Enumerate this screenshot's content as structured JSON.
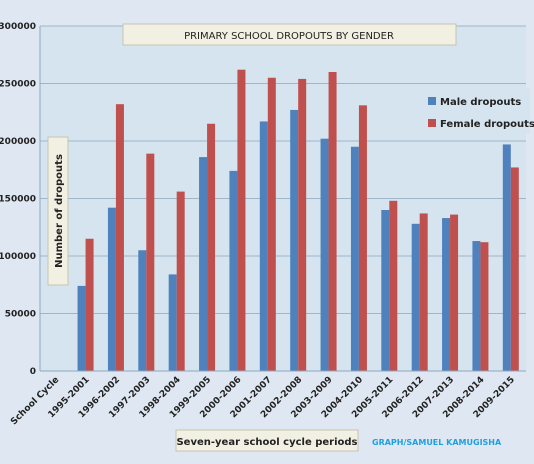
{
  "chart_data": {
    "type": "bar",
    "title": "PRIMARY SCHOOL DROPOUTS BY GENDER",
    "xlabel": "Seven-year school cycle periods",
    "ylabel": "Number of dropouts",
    "credit": "GRAPH/SAMUEL KAMUGISHA",
    "categories": [
      "School Cycle",
      "1995-2001",
      "1996-2002",
      "1997-2003",
      "1998-2004",
      "1999-2005",
      "2000-2006",
      "2001-2007",
      "2002-2008",
      "2003-2009",
      "2004-2010",
      "2005-2011",
      "2006-2012",
      "2007-2013",
      "2008-2014",
      "2009-2015"
    ],
    "series": [
      {
        "name": "Male dropouts",
        "color": "#4f81bd",
        "values": [
          null,
          74000,
          142000,
          105000,
          84000,
          186000,
          174000,
          217000,
          227000,
          202000,
          195000,
          140000,
          128000,
          133000,
          113000,
          197000
        ]
      },
      {
        "name": "Female dropouts",
        "color": "#c0504d",
        "values": [
          null,
          115000,
          232000,
          189000,
          156000,
          215000,
          262000,
          255000,
          254000,
          260000,
          231000,
          148000,
          137000,
          136000,
          112000,
          177000
        ]
      }
    ],
    "ylim": [
      0,
      300000
    ],
    "yticks": [
      "0",
      "50000",
      "100000",
      "150000",
      "200000",
      "250000",
      "300000"
    ],
    "grid": true,
    "legend": "right"
  }
}
